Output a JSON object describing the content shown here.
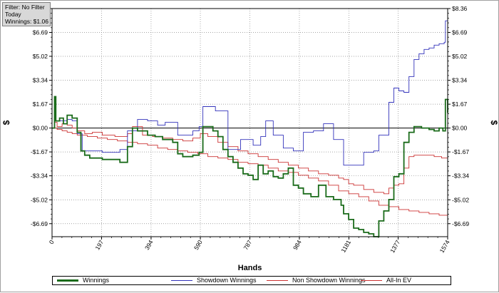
{
  "filter_box": {
    "filter": "Filter: No Filter",
    "period": "Today",
    "winnings": "Winnings: $1.06"
  },
  "chart_data": {
    "type": "line",
    "xlabel": "Hands",
    "ylabel": "$",
    "xlim": [
      0,
      1574
    ],
    "ylim": [
      -7.6,
      8.36
    ],
    "x_ticks": [
      0,
      197,
      394,
      590,
      787,
      984,
      1181,
      1377,
      1574
    ],
    "y_ticks": [
      8.36,
      6.69,
      5.02,
      3.34,
      1.67,
      0.0,
      -1.67,
      -3.34,
      -5.02,
      -6.69
    ],
    "y_tick_labels": [
      "$8.36",
      "$6.69",
      "$5.02",
      "$3.34",
      "$1.67",
      "$0.00",
      "-$1.67",
      "-$3.34",
      "-$5.02",
      "-$6.69"
    ],
    "grid": true,
    "legend_position": "bottom",
    "colors": {
      "Winnings": "#1a6b1a",
      "Showdown Winnings": "#3333bb",
      "Non Showdown Winnings": "#cc3333",
      "All-In EV": "#cc3333"
    },
    "series": [
      {
        "name": "Winnings",
        "x": [
          0,
          10,
          15,
          30,
          45,
          60,
          80,
          100,
          115,
          130,
          150,
          200,
          270,
          300,
          320,
          340,
          380,
          410,
          440,
          480,
          500,
          520,
          560,
          585,
          600,
          640,
          660,
          680,
          700,
          720,
          740,
          760,
          780,
          800,
          820,
          840,
          860,
          880,
          900,
          920,
          940,
          960,
          980,
          1000,
          1030,
          1060,
          1090,
          1120,
          1150,
          1160,
          1180,
          1200,
          1220,
          1240,
          1260,
          1280,
          1300,
          1320,
          1340,
          1360,
          1380,
          1400,
          1420,
          1440,
          1470,
          1500,
          1520,
          1540,
          1555,
          1565,
          1574
        ],
        "y": [
          0.0,
          2.2,
          0.5,
          0.7,
          0.3,
          0.9,
          0.7,
          -0.3,
          -1.6,
          -1.9,
          -2.1,
          -2.2,
          -2.4,
          -1.3,
          0.0,
          -0.2,
          -0.5,
          -0.6,
          -0.8,
          -1.0,
          -1.8,
          -2.0,
          -1.9,
          -1.7,
          0.1,
          -0.2,
          -0.6,
          -1.5,
          -2.0,
          -2.4,
          -2.8,
          -3.2,
          -3.3,
          -3.6,
          -2.6,
          -3.2,
          -3.0,
          -3.4,
          -3.5,
          -3.2,
          -2.8,
          -4.0,
          -4.2,
          -4.6,
          -4.8,
          -4.0,
          -4.8,
          -5.0,
          -5.4,
          -6.0,
          -6.4,
          -7.0,
          -7.1,
          -7.3,
          -7.4,
          -7.6,
          -6.5,
          -5.8,
          -5.0,
          -3.4,
          -3.2,
          -1.0,
          -0.3,
          0.1,
          0.0,
          -0.1,
          -0.2,
          0.0,
          -0.2,
          2.0,
          1.06
        ]
      },
      {
        "name": "Showdown Winnings",
        "x": [
          0,
          10,
          15,
          30,
          60,
          80,
          100,
          120,
          200,
          270,
          300,
          340,
          380,
          420,
          450,
          500,
          560,
          585,
          600,
          650,
          700,
          750,
          800,
          830,
          850,
          880,
          920,
          960,
          1000,
          1040,
          1080,
          1120,
          1160,
          1200,
          1240,
          1280,
          1300,
          1320,
          1340,
          1360,
          1380,
          1400,
          1420,
          1440,
          1460,
          1480,
          1500,
          1520,
          1540,
          1560,
          1565,
          1574
        ],
        "y": [
          0.0,
          2.2,
          0.5,
          0.5,
          0.6,
          0.5,
          -0.4,
          -1.6,
          -1.7,
          -1.5,
          -0.2,
          0.6,
          0.5,
          0.2,
          0.4,
          -0.5,
          -0.2,
          0.1,
          1.5,
          1.2,
          -1.5,
          -0.8,
          -1.2,
          -0.6,
          0.5,
          -0.5,
          -1.4,
          -1.6,
          -0.3,
          -0.2,
          0.3,
          -0.8,
          -2.6,
          -2.6,
          -1.7,
          -1.6,
          -0.5,
          -0.5,
          1.8,
          2.8,
          2.6,
          2.5,
          3.6,
          4.8,
          5.2,
          5.5,
          5.6,
          5.8,
          5.9,
          6.0,
          7.5,
          8.36
        ]
      },
      {
        "name": "Non Showdown Winnings",
        "x": [
          0,
          20,
          40,
          60,
          80,
          100,
          140,
          180,
          220,
          260,
          300,
          340,
          380,
          420,
          460,
          500,
          540,
          580,
          620,
          660,
          700,
          740,
          780,
          820,
          860,
          900,
          940,
          980,
          1020,
          1060,
          1100,
          1140,
          1180,
          1220,
          1260,
          1300,
          1340,
          1380,
          1420,
          1460,
          1500,
          1540,
          1574
        ],
        "y": [
          0.0,
          -0.1,
          -0.2,
          -0.3,
          -0.4,
          -0.5,
          -0.6,
          -0.7,
          -0.8,
          -0.9,
          -1.0,
          -1.1,
          -1.2,
          -1.4,
          -1.5,
          -1.6,
          -1.7,
          -1.8,
          -2.0,
          -2.1,
          -2.2,
          -2.4,
          -2.5,
          -2.6,
          -2.8,
          -3.0,
          -3.1,
          -3.3,
          -3.5,
          -3.7,
          -4.0,
          -4.4,
          -4.6,
          -4.8,
          -5.1,
          -5.4,
          -5.5,
          -5.7,
          -5.8,
          -5.9,
          -6.0,
          -6.1,
          -6.2
        ]
      },
      {
        "name": "All-In EV",
        "x": [
          0,
          10,
          20,
          40,
          60,
          80,
          100,
          130,
          160,
          200,
          250,
          300,
          320,
          360,
          400,
          440,
          480,
          520,
          560,
          590,
          620,
          660,
          700,
          740,
          780,
          820,
          860,
          900,
          940,
          980,
          1020,
          1060,
          1100,
          1140,
          1160,
          1180,
          1200,
          1240,
          1280,
          1320,
          1340,
          1360,
          1380,
          1400,
          1420,
          1440,
          1480,
          1520,
          1550,
          1574
        ],
        "y": [
          0.0,
          0.4,
          0.1,
          0.3,
          0.2,
          0.0,
          -0.2,
          -0.4,
          -0.3,
          -0.5,
          -0.6,
          -0.4,
          0.1,
          -0.5,
          -0.6,
          -0.7,
          -0.8,
          -0.9,
          -0.7,
          -0.4,
          -0.6,
          -1.0,
          -1.3,
          -1.6,
          -1.8,
          -2.0,
          -2.2,
          -2.4,
          -2.6,
          -2.8,
          -3.0,
          -3.2,
          -3.3,
          -3.5,
          -3.6,
          -3.9,
          -4.0,
          -4.3,
          -4.5,
          -4.6,
          -4.2,
          -4.0,
          -3.9,
          -2.8,
          -2.0,
          -1.9,
          -1.9,
          -2.0,
          -2.1,
          -2.3
        ]
      }
    ]
  }
}
